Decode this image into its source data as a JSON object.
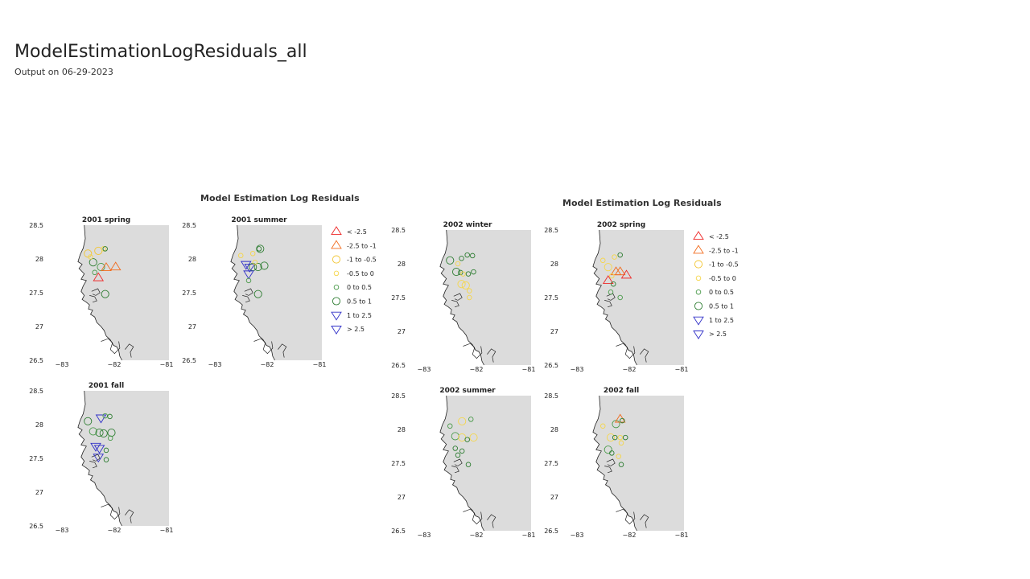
{
  "page": {
    "title": "ModelEstimationLogResiduals_all",
    "subtitle": "Output on 06-29-2023"
  },
  "colors": {
    "red": "#ee2a2a",
    "orange": "#f26a1b",
    "yellow": "#f2c530",
    "light_yellow": "#f5d64a",
    "green": "#2e7d32",
    "green_light": "#4a9a4a",
    "blue": "#3030c8",
    "map_land": "#dcdcdc"
  },
  "chart_data": [
    {
      "type": "scatter",
      "title": "Model Estimation Log Residuals",
      "xlim": [
        -83,
        -81
      ],
      "ylim": [
        26.5,
        28.5
      ],
      "x_ticks": [
        "−83",
        "−82",
        "−81"
      ],
      "y_ticks": [
        "28.5",
        "28",
        "27.5",
        "27",
        "26.5"
      ],
      "legend_position": "right",
      "legend": [
        {
          "label": "< -2.5",
          "symbol": "triangle-up",
          "color": "red"
        },
        {
          "label": "-2.5 to -1",
          "symbol": "triangle-up",
          "color": "orange"
        },
        {
          "label": "-1 to -0.5",
          "symbol": "circle-large",
          "color": "yellow"
        },
        {
          "label": "-0.5 to 0",
          "symbol": "circle-small",
          "color": "light_yellow"
        },
        {
          "label": "0 to 0.5",
          "symbol": "circle-small",
          "color": "green_light"
        },
        {
          "label": "0.5 to 1",
          "symbol": "circle-large",
          "color": "green"
        },
        {
          "label": "1 to 2.5",
          "symbol": "triangle-down",
          "color": "blue"
        },
        {
          "label": "> 2.5",
          "symbol": "triangle-down",
          "color": "blue"
        }
      ],
      "panels": [
        {
          "title": "2001 spring",
          "points": [
            [
              -82.55,
              28.08,
              "circle-large",
              "yellow"
            ],
            [
              -82.35,
              28.12,
              "circle-large",
              "yellow"
            ],
            [
              -82.25,
              28.15,
              "circle-small",
              "light_yellow"
            ],
            [
              -82.22,
              28.15,
              "circle-small",
              "green"
            ],
            [
              -82.45,
              27.95,
              "circle-large",
              "green"
            ],
            [
              -82.3,
              27.88,
              "circle-large",
              "green_light"
            ],
            [
              -82.2,
              27.87,
              "triangle-up",
              "orange"
            ],
            [
              -82.02,
              27.88,
              "triangle-up",
              "orange"
            ],
            [
              -82.42,
              27.8,
              "circle-small",
              "green_light"
            ],
            [
              -82.35,
              27.72,
              "triangle-up",
              "red"
            ],
            [
              -82.22,
              27.48,
              "circle-large",
              "green"
            ],
            [
              -82.5,
              28.03,
              "circle-small",
              "light_yellow"
            ]
          ]
        },
        {
          "title": "2001 summer",
          "points": [
            [
              -82.55,
              28.05,
              "circle-small",
              "light_yellow"
            ],
            [
              -82.32,
              28.08,
              "circle-small",
              "light_yellow"
            ],
            [
              -82.18,
              28.15,
              "circle-large",
              "green"
            ],
            [
              -82.2,
              28.15,
              "circle-small",
              "green"
            ],
            [
              -82.45,
              27.92,
              "triangle-down",
              "blue"
            ],
            [
              -82.38,
              27.88,
              "triangle-down",
              "blue"
            ],
            [
              -82.32,
              27.88,
              "circle-large",
              "green"
            ],
            [
              -82.22,
              27.88,
              "circle-large",
              "green"
            ],
            [
              -82.1,
              27.9,
              "circle-large",
              "green"
            ],
            [
              -82.4,
              27.78,
              "triangle-down",
              "blue"
            ],
            [
              -82.4,
              27.68,
              "circle-small",
              "green_light"
            ],
            [
              -82.22,
              27.48,
              "circle-large",
              "green"
            ],
            [
              -82.28,
              27.95,
              "circle-small",
              "light_yellow"
            ]
          ]
        },
        {
          "title": "2001 fall",
          "points": [
            [
              -82.55,
              28.05,
              "circle-large",
              "green"
            ],
            [
              -82.3,
              28.1,
              "triangle-down",
              "blue"
            ],
            [
              -82.22,
              28.13,
              "circle-small",
              "green_light"
            ],
            [
              -82.13,
              28.12,
              "circle-small",
              "green"
            ],
            [
              -82.45,
              27.9,
              "circle-large",
              "green_light"
            ],
            [
              -82.33,
              27.88,
              "circle-large",
              "green"
            ],
            [
              -82.25,
              27.87,
              "circle-large",
              "green"
            ],
            [
              -82.1,
              27.88,
              "circle-large",
              "green"
            ],
            [
              -82.12,
              27.8,
              "circle-small",
              "green_light"
            ],
            [
              -82.4,
              27.68,
              "triangle-down",
              "blue"
            ],
            [
              -82.33,
              27.65,
              "triangle-down",
              "blue"
            ],
            [
              -82.2,
              27.62,
              "circle-small",
              "green"
            ],
            [
              -82.35,
              27.52,
              "triangle-down",
              "blue"
            ],
            [
              -82.2,
              27.48,
              "circle-small",
              "green"
            ]
          ]
        }
      ]
    },
    {
      "type": "scatter",
      "title": "Model Estimation Log Residuals",
      "xlim": [
        -83,
        -81
      ],
      "ylim": [
        26.5,
        28.5
      ],
      "x_ticks": [
        "−83",
        "−82",
        "−81"
      ],
      "y_ticks": [
        "28.5",
        "28",
        "27.5",
        "27",
        "26.5"
      ],
      "legend_position": "right",
      "legend": [
        {
          "label": "< -2.5",
          "symbol": "triangle-up",
          "color": "red"
        },
        {
          "label": "-2.5 to -1",
          "symbol": "triangle-up",
          "color": "orange"
        },
        {
          "label": "-1 to -0.5",
          "symbol": "circle-large",
          "color": "yellow"
        },
        {
          "label": "-0.5 to 0",
          "symbol": "circle-small",
          "color": "light_yellow"
        },
        {
          "label": "0 to 0.5",
          "symbol": "circle-small",
          "color": "green_light"
        },
        {
          "label": "0.5 to 1",
          "symbol": "circle-large",
          "color": "green"
        },
        {
          "label": "1 to 2.5",
          "symbol": "triangle-down",
          "color": "blue"
        },
        {
          "label": "> 2.5",
          "symbol": "triangle-down",
          "color": "blue"
        }
      ],
      "panels": [
        {
          "title": "2002 winter",
          "points": [
            [
              -82.55,
              28.05,
              "circle-large",
              "green"
            ],
            [
              -82.33,
              28.08,
              "circle-small",
              "green"
            ],
            [
              -82.22,
              28.13,
              "circle-small",
              "green"
            ],
            [
              -82.12,
              28.12,
              "circle-small",
              "green"
            ],
            [
              -82.4,
              28.0,
              "circle-small",
              "light_yellow"
            ],
            [
              -82.43,
              27.88,
              "circle-large",
              "green"
            ],
            [
              -82.35,
              27.87,
              "circle-small",
              "green"
            ],
            [
              -82.1,
              27.88,
              "circle-small",
              "green"
            ],
            [
              -82.33,
              27.7,
              "circle-large",
              "light_yellow"
            ],
            [
              -82.25,
              27.68,
              "circle-large",
              "light_yellow"
            ],
            [
              -82.18,
              27.6,
              "circle-small",
              "light_yellow"
            ],
            [
              -82.18,
              27.5,
              "circle-small",
              "light_yellow"
            ],
            [
              -82.3,
              27.85,
              "circle-small",
              "light_yellow"
            ],
            [
              -82.2,
              27.85,
              "circle-small",
              "green"
            ]
          ]
        },
        {
          "title": "2002 spring",
          "points": [
            [
              -82.55,
              28.05,
              "circle-small",
              "light_yellow"
            ],
            [
              -82.33,
              28.1,
              "circle-small",
              "light_yellow"
            ],
            [
              -82.22,
              28.13,
              "circle-small",
              "green"
            ],
            [
              -82.45,
              27.95,
              "circle-large",
              "light_yellow"
            ],
            [
              -82.3,
              27.88,
              "triangle-up",
              "orange"
            ],
            [
              -82.22,
              27.88,
              "triangle-up",
              "orange"
            ],
            [
              -82.1,
              27.83,
              "triangle-up",
              "red"
            ],
            [
              -82.45,
              27.75,
              "triangle-up",
              "red"
            ],
            [
              -82.35,
              27.7,
              "circle-small",
              "green"
            ],
            [
              -82.4,
              27.58,
              "circle-small",
              "green_light"
            ],
            [
              -82.22,
              27.5,
              "circle-small",
              "green_light"
            ],
            [
              -82.38,
              27.82,
              "circle-small",
              "light_yellow"
            ]
          ]
        },
        {
          "title": "2002 summer",
          "points": [
            [
              -82.55,
              28.05,
              "circle-small",
              "green_light"
            ],
            [
              -82.32,
              28.12,
              "circle-large",
              "light_yellow"
            ],
            [
              -82.15,
              28.15,
              "circle-small",
              "green_light"
            ],
            [
              -82.45,
              27.9,
              "circle-large",
              "green_light"
            ],
            [
              -82.32,
              27.88,
              "circle-large",
              "light_yellow"
            ],
            [
              -82.1,
              27.88,
              "circle-large",
              "light_yellow"
            ],
            [
              -82.22,
              27.85,
              "circle-small",
              "green"
            ],
            [
              -82.45,
              27.72,
              "circle-small",
              "green"
            ],
            [
              -82.4,
              27.62,
              "circle-small",
              "green"
            ],
            [
              -82.32,
              27.68,
              "circle-small",
              "green"
            ],
            [
              -82.2,
              27.48,
              "circle-small",
              "green"
            ]
          ]
        },
        {
          "title": "2002 fall",
          "points": [
            [
              -82.55,
              28.05,
              "circle-small",
              "light_yellow"
            ],
            [
              -82.3,
              28.08,
              "circle-large",
              "green_light"
            ],
            [
              -82.22,
              28.15,
              "triangle-up",
              "orange"
            ],
            [
              -82.18,
              28.13,
              "circle-small",
              "green"
            ],
            [
              -82.4,
              27.88,
              "circle-large",
              "light_yellow"
            ],
            [
              -82.32,
              27.88,
              "circle-small",
              "green"
            ],
            [
              -82.22,
              27.88,
              "circle-small",
              "light_yellow"
            ],
            [
              -82.12,
              27.88,
              "circle-small",
              "green"
            ],
            [
              -82.2,
              27.8,
              "circle-small",
              "light_yellow"
            ],
            [
              -82.45,
              27.7,
              "circle-large",
              "green_light"
            ],
            [
              -82.38,
              27.65,
              "circle-small",
              "green"
            ],
            [
              -82.25,
              27.6,
              "circle-small",
              "light_yellow"
            ],
            [
              -82.2,
              27.48,
              "circle-small",
              "green"
            ]
          ]
        }
      ]
    }
  ]
}
